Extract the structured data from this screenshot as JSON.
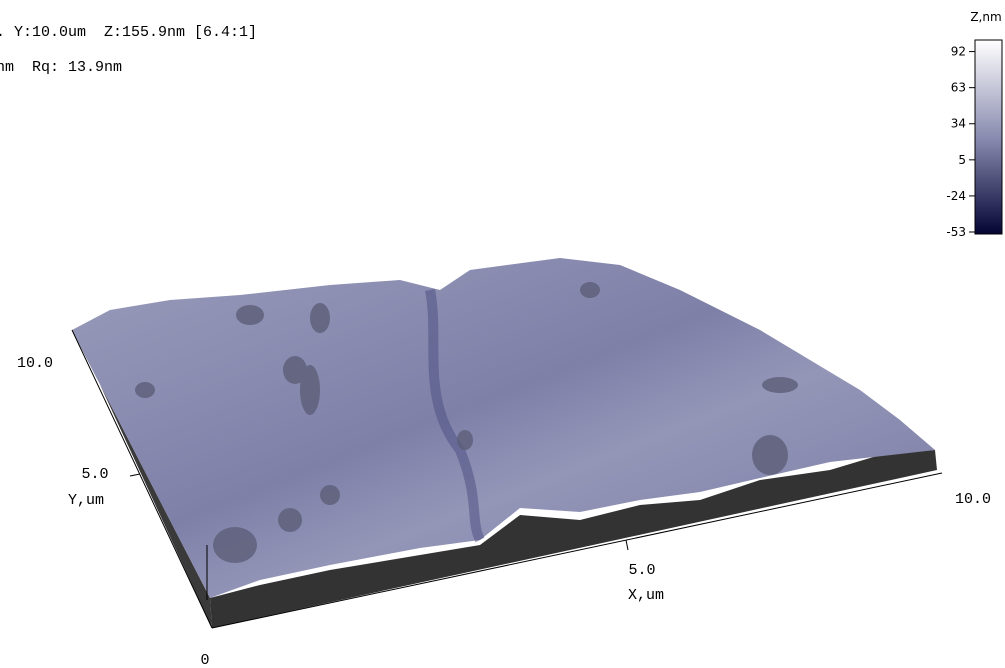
{
  "header": {
    "line1": ". Y:10.0um  Z:155.9nm [6.4:1]",
    "line2": "nm  Rq: 13.9nm"
  },
  "colorbar": {
    "title": "Z,nm",
    "lim": [
      -54.6,
      101.3
    ],
    "ticks": [
      92,
      63,
      34,
      5,
      -24,
      -53
    ]
  },
  "axes": {
    "origin": "0",
    "x": {
      "label": "X,um",
      "ticks": [
        "5.0",
        "10.0"
      ]
    },
    "y": {
      "label": "Y,um",
      "ticks": [
        "5.0",
        "10.0"
      ]
    }
  }
}
